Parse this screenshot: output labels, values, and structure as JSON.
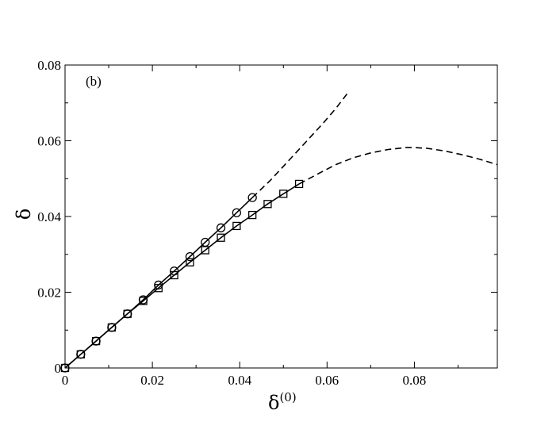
{
  "chart_data": {
    "type": "line",
    "title": "",
    "panel_label": "(b)",
    "xlabel": "δ",
    "xlabel_superscript": "(0)",
    "ylabel": "δ",
    "xlim": [
      0,
      0.099
    ],
    "ylim": [
      0,
      0.08
    ],
    "xticks": [
      0,
      0.02,
      0.04,
      0.06,
      0.08
    ],
    "xtick_labels": [
      "0",
      "0.02",
      "0.04",
      "0.06",
      "0.08"
    ],
    "yticks": [
      0,
      0.02,
      0.04,
      0.06,
      0.08
    ],
    "ytick_labels": [
      "0",
      "0.02",
      "0.04",
      "0.06",
      "0.08"
    ],
    "grid": false,
    "legend": "none",
    "series": [
      {
        "marker": "circle",
        "line": "solid",
        "x": [
          0,
          0.0036,
          0.0071,
          0.0107,
          0.0143,
          0.0179,
          0.0214,
          0.025,
          0.0286,
          0.0321,
          0.0357,
          0.0393,
          0.0429
        ],
        "y": [
          0,
          0.0036,
          0.0071,
          0.0107,
          0.0143,
          0.018,
          0.0219,
          0.0256,
          0.0294,
          0.0332,
          0.037,
          0.041,
          0.045
        ]
      },
      {
        "marker": "square",
        "line": "solid",
        "x": [
          0,
          0.0036,
          0.0071,
          0.0107,
          0.0143,
          0.0179,
          0.0214,
          0.025,
          0.0286,
          0.0321,
          0.0357,
          0.0393,
          0.0429,
          0.0464,
          0.05,
          0.0536
        ],
        "y": [
          0,
          0.0036,
          0.0071,
          0.0107,
          0.0143,
          0.0177,
          0.0211,
          0.0245,
          0.0279,
          0.0311,
          0.0344,
          0.0375,
          0.0404,
          0.0433,
          0.046,
          0.0486
        ]
      },
      {
        "marker": "none",
        "line": "dashed",
        "x": [
          0.0429,
          0.047,
          0.051,
          0.055,
          0.059,
          0.062,
          0.065
        ],
        "y": [
          0.045,
          0.0495,
          0.0545,
          0.0595,
          0.0645,
          0.0685,
          0.073
        ]
      },
      {
        "marker": "none",
        "line": "dashed",
        "x": [
          0.0536,
          0.058,
          0.062,
          0.066,
          0.07,
          0.074,
          0.078,
          0.08,
          0.083,
          0.087,
          0.091,
          0.095,
          0.099
        ],
        "y": [
          0.0486,
          0.0513,
          0.0537,
          0.0555,
          0.0568,
          0.0577,
          0.0582,
          0.0582,
          0.058,
          0.0573,
          0.0563,
          0.0551,
          0.0537
        ]
      }
    ]
  }
}
